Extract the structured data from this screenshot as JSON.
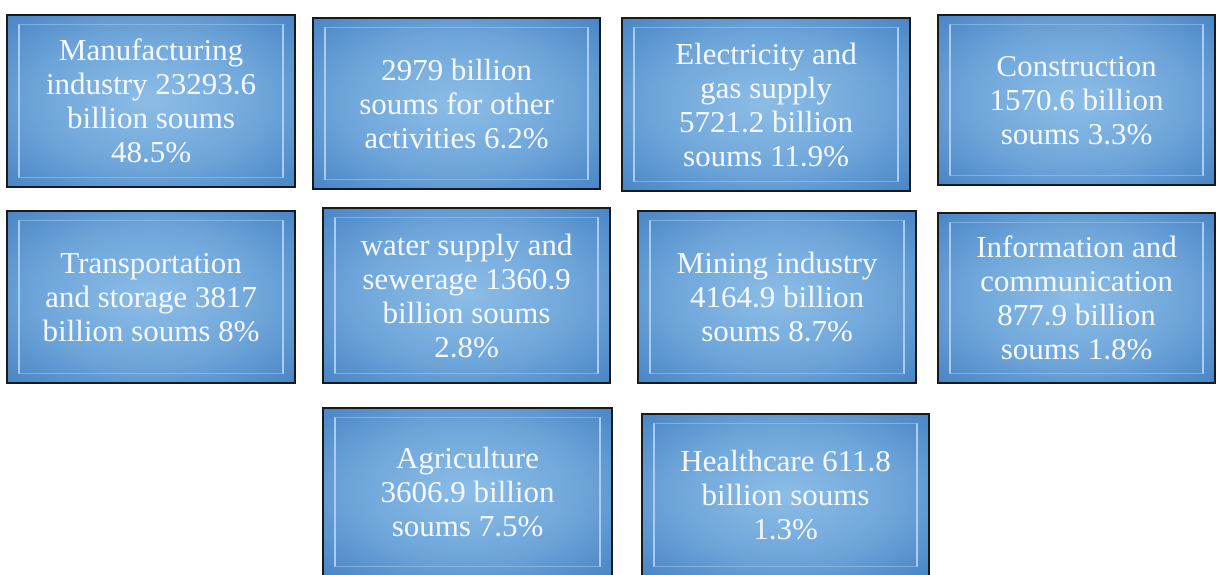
{
  "nodes": [
    {
      "lines": [
        "Manufacturing",
        "industry 23293.6",
        "billion soums",
        "48.5%"
      ]
    },
    {
      "lines": [
        "2979 billion",
        "soums for other",
        "activities 6.2%"
      ]
    },
    {
      "lines": [
        "Electricity and",
        "gas supply",
        "5721.2 billion",
        "soums 11.9%"
      ]
    },
    {
      "lines": [
        "Construction",
        "1570.6 billion",
        "soums 3.3%"
      ]
    },
    {
      "lines": [
        "Transportation",
        "and storage 3817",
        "billion soums 8%"
      ]
    },
    {
      "lines": [
        "water supply and",
        "sewerage 1360.9",
        "billion soums",
        "2.8%"
      ]
    },
    {
      "lines": [
        "Mining industry",
        "4164.9 billion",
        "soums 8.7%"
      ]
    },
    {
      "lines": [
        "Information and",
        "communication",
        "877.9 billion",
        "soums 1.8%"
      ]
    },
    {
      "lines": [
        "Agriculture",
        "3606.9 billion",
        "soums 7.5%"
      ]
    },
    {
      "lines": [
        "Healthcare 611.8",
        "billion soums",
        "1.3%"
      ]
    }
  ]
}
